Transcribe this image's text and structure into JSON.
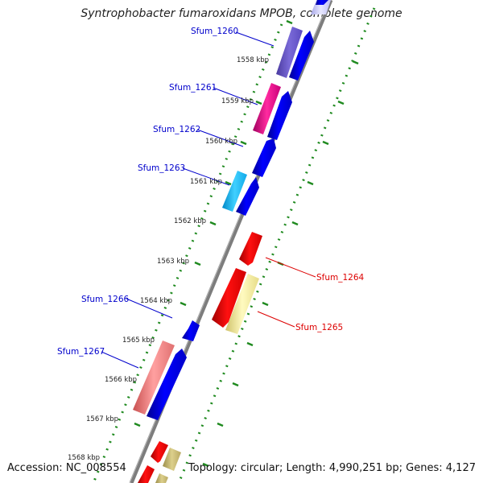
{
  "title": "Syntrophobacter fumaroxidans MPOB, complete genome",
  "accession": "Accession: NC_008554",
  "topology": "Topology: circular; Length: 4,990,251 bp; Genes: 4,127",
  "colors": {
    "backbone": "#8c8c8c",
    "tick_dots": "#1f8a1f",
    "label_blue": "#0000cc",
    "label_red": "#dd0000",
    "cds_blue": "#0000ee",
    "cds_red": "#ee0000",
    "cds_purple": "#6a5acd",
    "cds_magenta": "#e0108a",
    "cds_cyan": "#10b8f0",
    "cds_pink": "#ee8080",
    "cds_khaki": "#f2ec9a",
    "cds_olive": "#cfc17a",
    "cds_lavender": "#c8c8f8"
  },
  "kbp_labels": [
    "1558 kbp",
    "1559 kbp",
    "1560 kbp",
    "1561 kbp",
    "1562 kbp",
    "1563 kbp",
    "1564 kbp",
    "1565 kbp",
    "1566 kbp",
    "1567 kbp",
    "1568 kbp"
  ],
  "gene_labels": [
    {
      "text": "Sfum_1260",
      "strand": "forward"
    },
    {
      "text": "Sfum_1261",
      "strand": "forward"
    },
    {
      "text": "Sfum_1262",
      "strand": "forward"
    },
    {
      "text": "Sfum_1263",
      "strand": "forward"
    },
    {
      "text": "Sfum_1264",
      "strand": "reverse"
    },
    {
      "text": "Sfum_1265",
      "strand": "reverse"
    },
    {
      "text": "Sfum_1266",
      "strand": "forward"
    },
    {
      "text": "Sfum_1267",
      "strand": "forward"
    }
  ]
}
